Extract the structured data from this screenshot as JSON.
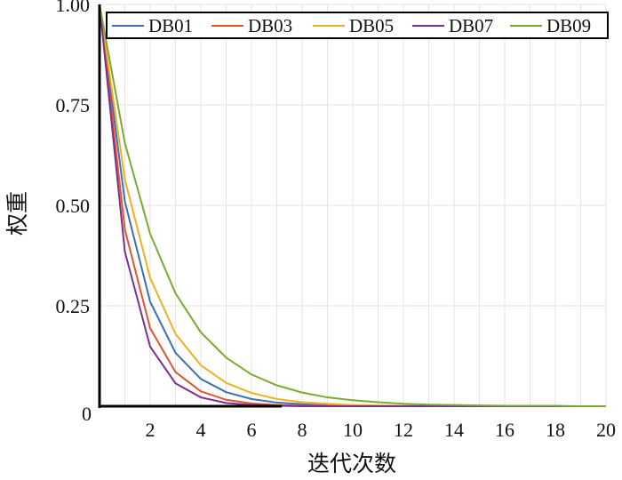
{
  "chart_data": {
    "type": "line",
    "title": "",
    "xlabel": "迭代次数",
    "ylabel": "权重",
    "xlim": [
      0,
      20
    ],
    "ylim": [
      0,
      1
    ],
    "grid": true,
    "legend_position": "top",
    "x": [
      0,
      1,
      2,
      3,
      4,
      5,
      6,
      7,
      8,
      9,
      10,
      11,
      12,
      13,
      14,
      15,
      16,
      17,
      18,
      19,
      20
    ],
    "xticks": [
      2,
      4,
      6,
      8,
      10,
      12,
      14,
      16,
      18,
      20
    ],
    "xtick_labels": [
      "2",
      "4",
      "6",
      "8",
      "10",
      "12",
      "14",
      "16",
      "18",
      "20"
    ],
    "yticks": [
      0,
      0.25,
      0.5,
      0.75,
      1.0
    ],
    "ytick_labels": [
      "0",
      "0.25",
      "0.50",
      "0.75",
      "1.00"
    ],
    "series": [
      {
        "name": "DB01",
        "color": "#3b70b6",
        "values": [
          1,
          0.51,
          0.26,
          0.133,
          0.068,
          0.035,
          0.018,
          0.009,
          0.005,
          0.002,
          0.001,
          0.001,
          0,
          0,
          0,
          0,
          0,
          0,
          0,
          0,
          0
        ]
      },
      {
        "name": "DB03",
        "color": "#e2532a",
        "values": [
          1,
          0.44,
          0.194,
          0.085,
          0.037,
          0.016,
          0.007,
          0.003,
          0.001,
          0.001,
          0,
          0,
          0,
          0,
          0,
          0,
          0,
          0,
          0,
          0,
          0
        ]
      },
      {
        "name": "DB05",
        "color": "#efb020",
        "values": [
          1,
          0.565,
          0.319,
          0.18,
          0.102,
          0.058,
          0.033,
          0.018,
          0.01,
          0.006,
          0.003,
          0.002,
          0.001,
          0.001,
          0,
          0,
          0,
          0,
          0,
          0,
          0
        ]
      },
      {
        "name": "DB07",
        "color": "#7e2f8e",
        "values": [
          1,
          0.385,
          0.148,
          0.057,
          0.022,
          0.008,
          0.003,
          0.001,
          0,
          0,
          0,
          0,
          0,
          0,
          0,
          0,
          0,
          0,
          0,
          0,
          0
        ]
      },
      {
        "name": "DB09",
        "color": "#77ac30",
        "values": [
          1,
          0.655,
          0.429,
          0.281,
          0.184,
          0.121,
          0.079,
          0.052,
          0.034,
          0.022,
          0.015,
          0.01,
          0.006,
          0.004,
          0.003,
          0.002,
          0.001,
          0.001,
          0.001,
          0,
          0
        ]
      }
    ]
  }
}
